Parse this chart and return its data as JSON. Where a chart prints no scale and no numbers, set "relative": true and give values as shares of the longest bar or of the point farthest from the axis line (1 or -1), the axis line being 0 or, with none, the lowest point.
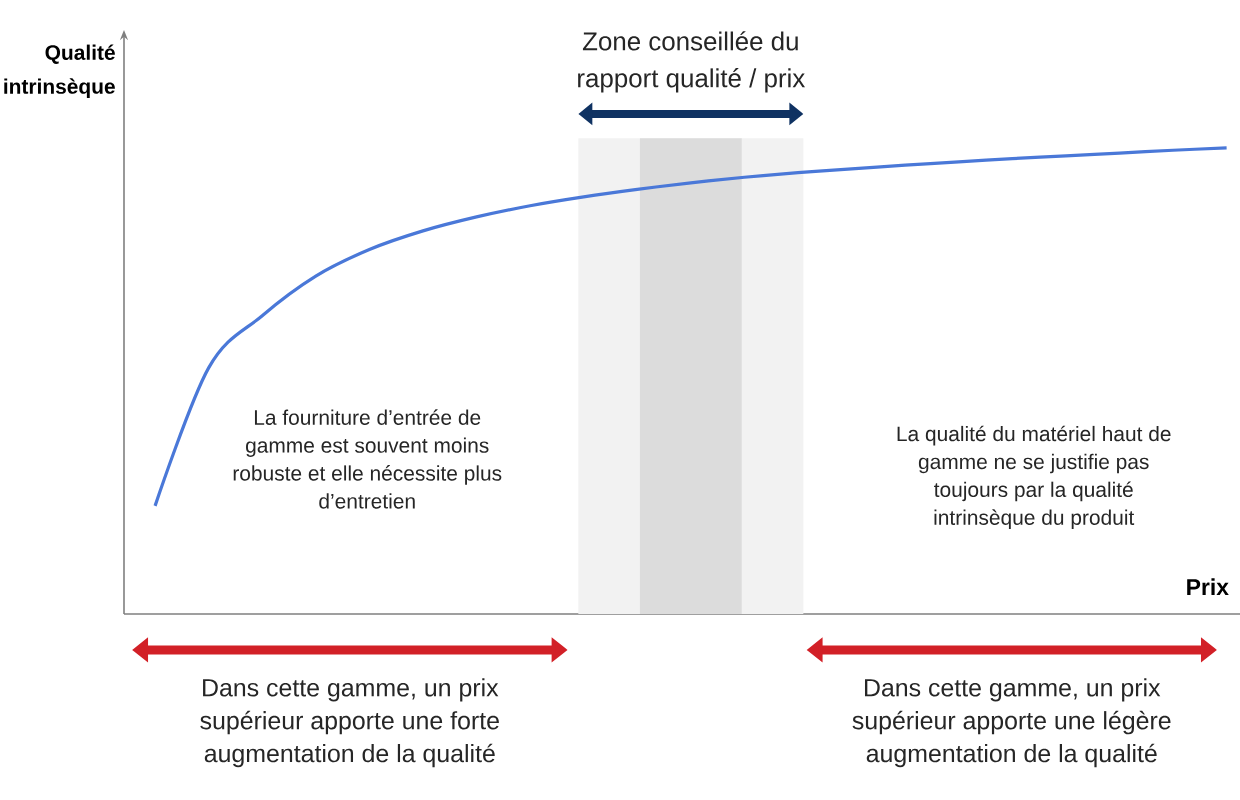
{
  "chart_data": {
    "type": "line",
    "xlabel": "Prix",
    "ylabel": "Qualité intrinsèque",
    "relative": true,
    "categories": [
      null,
      null,
      null,
      null,
      null,
      null,
      null,
      null,
      null,
      null,
      null,
      null,
      null,
      null,
      null,
      null,
      null,
      null,
      null,
      null,
      null
    ],
    "series": [
      {
        "color": "#4a78d8",
        "values": [
          0.232,
          0.528,
          0.64,
          0.725,
          0.782,
          0.822,
          0.852,
          0.876,
          0.895,
          0.911,
          0.925,
          0.937,
          0.947,
          0.955,
          0.963,
          0.97,
          0.977,
          0.983,
          0.989,
          0.995,
          1.0
        ]
      }
    ],
    "annotations": [
      "Zone conseillée du rapport qualité / prix",
      "La fourniture d’entrée de gamme est souvent moins robuste et elle nécessite plus d’entretien",
      "La qualité du matériel haut de gamme ne se justifie pas toujours par la qualité intrinsèque du produit",
      "Dans cette gamme, un prix supérieur apporte une forte augmentation de la qualité",
      "Dans cette gamme, un prix supérieur apporte une légère augmentation de la qualité"
    ],
    "marker": "none",
    "line_style": "solid"
  }
}
